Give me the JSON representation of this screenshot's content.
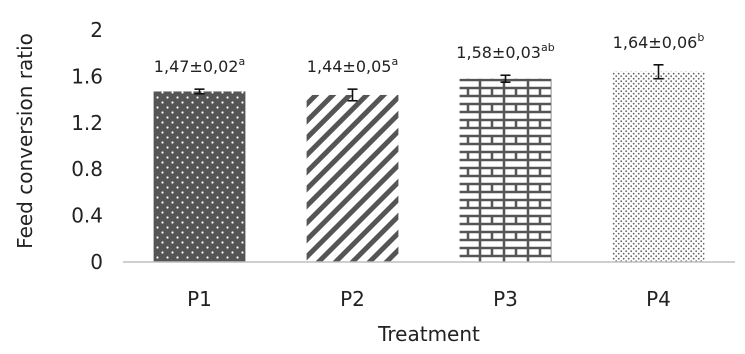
{
  "chart_data": {
    "type": "bar",
    "title": "",
    "xlabel": "Treatment",
    "ylabel": "Feed conversion ratio",
    "ylim": [
      0,
      2
    ],
    "yticks": [
      "0",
      "0.4",
      "0.8",
      "1.2",
      "1.6",
      "2"
    ],
    "grid": false,
    "legend": "none",
    "categories": [
      "P1",
      "P2",
      "P3",
      "P4"
    ],
    "values": [
      1.47,
      1.44,
      1.58,
      1.64
    ],
    "errors": [
      0.02,
      0.05,
      0.03,
      0.06
    ],
    "data_labels": [
      {
        "text": "1,47±0,02",
        "sup": "a"
      },
      {
        "text": "1,44±0,05",
        "sup": "a"
      },
      {
        "text": "1,58±0,03",
        "sup": "ab"
      },
      {
        "text": "1,64±0,06",
        "sup": "b"
      }
    ],
    "fill_patterns": [
      "dark-dotted",
      "diagonal-stripes",
      "brick",
      "light-dotted"
    ],
    "colors": {
      "bar_dark": "#555555",
      "axis": "#bfbfbf",
      "text": "#222222"
    }
  }
}
